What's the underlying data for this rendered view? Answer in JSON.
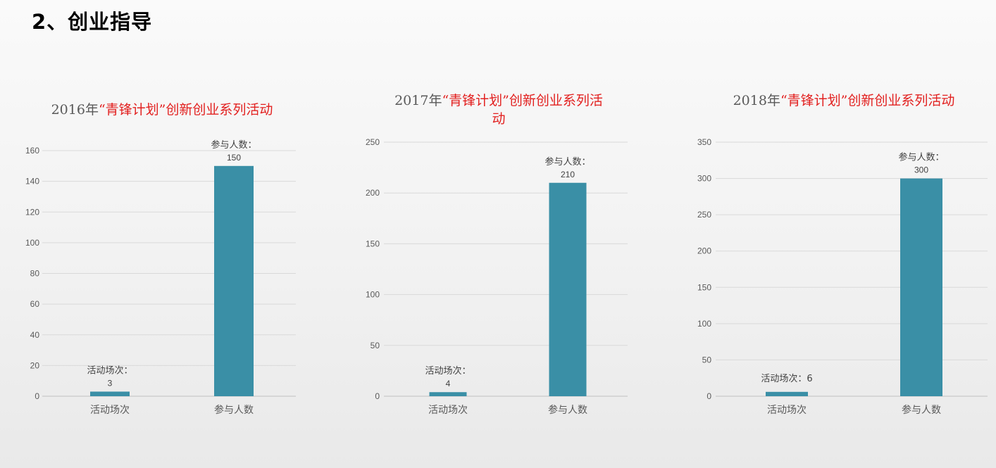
{
  "page": {
    "title": "2、创业指导"
  },
  "chart_data": [
    {
      "type": "bar",
      "title_parts": [
        "2016年",
        "“青锋计划”创新创业系列活动"
      ],
      "categories": [
        "活动场次",
        "参与人数"
      ],
      "values": [
        3,
        150
      ],
      "data_labels": [
        [
          "活动场次：",
          "3"
        ],
        [
          "参与人数：",
          "150"
        ]
      ],
      "ylim": [
        0,
        160
      ],
      "yticks": [
        0,
        20,
        40,
        60,
        80,
        100,
        120,
        140,
        160
      ],
      "grid": true,
      "bar_color": "#3a8fa6"
    },
    {
      "type": "bar",
      "title_parts": [
        "2017年",
        "“青锋计划”创新创业系列活动"
      ],
      "categories": [
        "活动场次",
        "参与人数"
      ],
      "values": [
        4,
        210
      ],
      "data_labels": [
        [
          "活动场次：",
          "4"
        ],
        [
          "参与人数：",
          "210"
        ]
      ],
      "ylim": [
        0,
        250
      ],
      "yticks": [
        0,
        50,
        100,
        150,
        200,
        250
      ],
      "grid": true,
      "bar_color": "#3a8fa6"
    },
    {
      "type": "bar",
      "title_parts": [
        "2018年",
        "“青锋计划”创新创业系列活动"
      ],
      "categories": [
        "活动场次",
        "参与人数"
      ],
      "values": [
        6,
        300
      ],
      "data_labels": [
        [
          "活动场次：6"
        ],
        [
          "参与人数：",
          "300"
        ]
      ],
      "ylim": [
        0,
        350
      ],
      "yticks": [
        0,
        50,
        100,
        150,
        200,
        250,
        300,
        350
      ],
      "grid": true,
      "bar_color": "#3a8fa6"
    }
  ]
}
